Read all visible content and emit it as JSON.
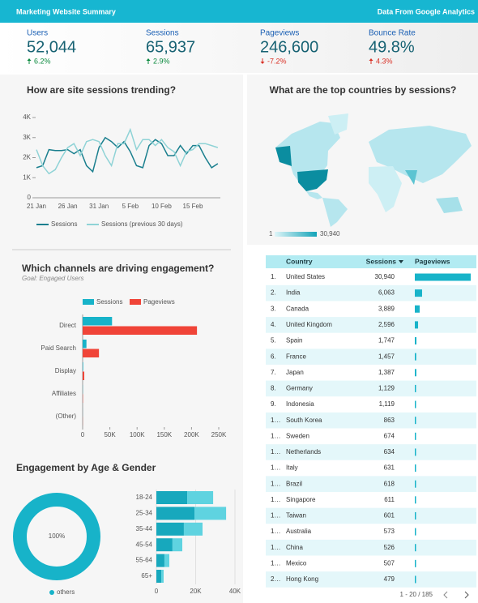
{
  "header": {
    "title": "Marketing Website Summary",
    "source": "Data From Google Analytics"
  },
  "scorecards": [
    {
      "label": "Users",
      "value": "52,044",
      "change": "6.2%",
      "direction": "up",
      "color": "#0b8a3e"
    },
    {
      "label": "Sessions",
      "value": "65,937",
      "change": "2.9%",
      "direction": "up",
      "color": "#0b8a3e"
    },
    {
      "label": "Pageviews",
      "value": "246,600",
      "change": "-7.2%",
      "direction": "down",
      "color": "#d93025"
    },
    {
      "label": "Bounce Rate",
      "value": "49.8%",
      "change": "4.3%",
      "direction": "up",
      "color": "#d93025"
    }
  ],
  "chart_data": [
    {
      "type": "line",
      "title": "How are site sessions trending?",
      "categories": [
        "21 Jan",
        null,
        null,
        null,
        null,
        "26 Jan",
        null,
        null,
        null,
        null,
        "31 Jan",
        null,
        null,
        null,
        null,
        "5 Feb",
        null,
        null,
        null,
        null,
        "10 Feb",
        null,
        null,
        null,
        null,
        "15 Feb",
        null,
        null,
        null,
        null
      ],
      "series": [
        {
          "name": "Sessions",
          "color": "#1a7f8e",
          "values": [
            1500,
            1600,
            2400,
            2350,
            2350,
            2400,
            2200,
            2400,
            1600,
            1300,
            2500,
            3000,
            2800,
            2500,
            2800,
            2300,
            1600,
            1500,
            2600,
            2900,
            2700,
            2100,
            2100,
            2600,
            2200,
            2600,
            2600,
            2000,
            1500,
            1700
          ]
        },
        {
          "name": "Sessions (previous 30 days)",
          "color": "#8fd3d6",
          "values": [
            2400,
            1600,
            1200,
            1400,
            2000,
            2500,
            2700,
            2100,
            2800,
            2900,
            2800,
            2100,
            1600,
            2700,
            2700,
            3400,
            2400,
            2900,
            2900,
            2600,
            2900,
            2500,
            2300,
            1600,
            2300,
            2400,
            2700,
            2700,
            2600,
            2500
          ]
        }
      ],
      "ylim": [
        0,
        4000
      ],
      "yticks": [
        0,
        {
          "value": 1000,
          "label": "1K"
        },
        {
          "value": 2000,
          "label": "2K"
        },
        {
          "value": 3000,
          "label": "3K"
        },
        {
          "value": 4000,
          "label": "4K"
        }
      ]
    },
    {
      "type": "map",
      "title": "What are the top countries by sessions?",
      "color_range": [
        "#dff5f8",
        "#13a3b8"
      ],
      "legend": [
        1,
        {
          "value": 30940,
          "label": "30,940"
        }
      ]
    },
    {
      "type": "hbar",
      "title": "Which channels are driving engagement?",
      "subtitle": "Goal: Engaged Users",
      "categories": [
        "Direct",
        "Paid Search",
        "Display",
        "Affiliates",
        "(Other)"
      ],
      "series": [
        {
          "name": "Sessions",
          "color": "#17b3c9",
          "values": [
            54000,
            7000,
            1000,
            300,
            100
          ]
        },
        {
          "name": "Pageviews",
          "color": "#f04438",
          "values": [
            210000,
            30000,
            3000,
            500,
            200
          ]
        }
      ],
      "xlim": [
        0,
        250000
      ],
      "xticks": [
        0,
        {
          "value": 50000,
          "label": "50K"
        },
        {
          "value": 100000,
          "label": "100K"
        },
        {
          "value": 150000,
          "label": "150K"
        },
        {
          "value": 200000,
          "label": "200K"
        },
        {
          "value": 250000,
          "label": "250K"
        }
      ]
    },
    {
      "type": "pie",
      "title": "Engagement by Age & Gender",
      "categories": [
        "others"
      ],
      "values": [
        100
      ],
      "value_labels": [
        "100%"
      ],
      "colors": [
        "#17b3c9"
      ]
    },
    {
      "type": "stacked-hbar",
      "categories": [
        "18-24",
        "25-34",
        "35-44",
        "45-54",
        "55-64",
        "65+"
      ],
      "series": [
        {
          "color": "#17a8bd",
          "values": [
            15700,
            19400,
            14000,
            8200,
            4100,
            2500
          ]
        },
        {
          "color": "#5fd3e0",
          "values": [
            13200,
            16100,
            9500,
            5000,
            2500,
            1200
          ]
        }
      ],
      "xlim": [
        0,
        40000
      ],
      "xticks": [
        0,
        {
          "value": 20000,
          "label": "20K"
        },
        {
          "value": 40000,
          "label": "40K"
        }
      ]
    }
  ],
  "table": {
    "columns": [
      "Country",
      "Sessions",
      "Pageviews"
    ],
    "bar_color": "#17b3c9",
    "rows": [
      [
        "1.",
        "United States",
        "30,940",
        120000
      ],
      [
        "2.",
        "India",
        "6,063",
        15600
      ],
      [
        "3.",
        "Canada",
        "3,889",
        10400
      ],
      [
        "4.",
        "United Kingdom",
        "2,596",
        7000
      ],
      [
        "5.",
        "Spain",
        "1,747",
        3500
      ],
      [
        "6.",
        "France",
        "1,457",
        3000
      ],
      [
        "7.",
        "Japan",
        "1,387",
        3300
      ],
      [
        "8.",
        "Germany",
        "1,129",
        2500
      ],
      [
        "9.",
        "Indonesia",
        "1,119",
        2000
      ],
      [
        "1…",
        "South Korea",
        "863",
        1800
      ],
      [
        "1…",
        "Sweden",
        "674",
        1500
      ],
      [
        "1…",
        "Netherlands",
        "634",
        1400
      ],
      [
        "1…",
        "Italy",
        "631",
        1300
      ],
      [
        "1…",
        "Brazil",
        "618",
        1400
      ],
      [
        "1…",
        "Singapore",
        "611",
        1300
      ],
      [
        "1…",
        "Taiwan",
        "601",
        1300
      ],
      [
        "1…",
        "Australia",
        "573",
        1300
      ],
      [
        "1…",
        "China",
        "526",
        1200
      ],
      [
        "1…",
        "Mexico",
        "507",
        1100
      ],
      [
        "2…",
        "Hong Kong",
        "479",
        1000
      ]
    ],
    "pagination": "1 - 20 / 185"
  }
}
